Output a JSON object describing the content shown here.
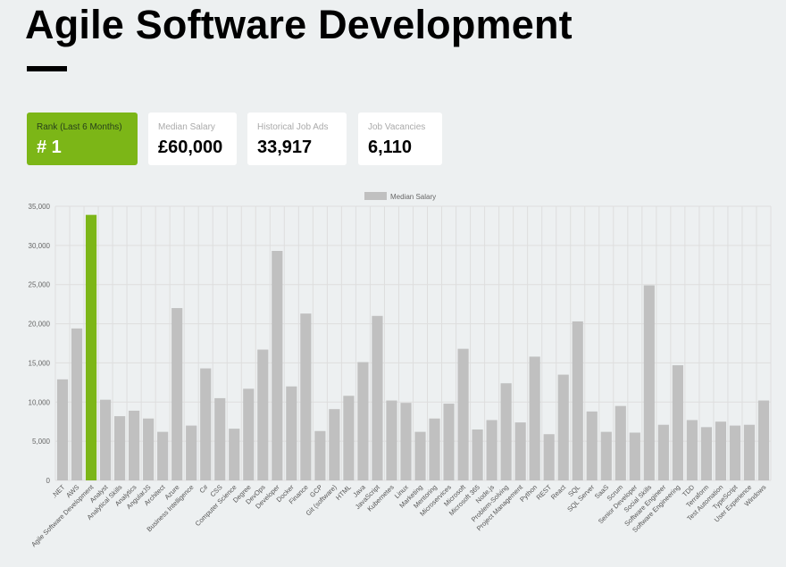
{
  "header": {
    "title": "Agile Software Development"
  },
  "stats": {
    "rank": {
      "label": "Rank (Last 6 Months)",
      "value": "# 1"
    },
    "salary": {
      "label": "Median Salary",
      "value": "£60,000"
    },
    "ads": {
      "label": "Historical Job Ads",
      "value": "33,917"
    },
    "vacancies": {
      "label": "Job Vacancies",
      "value": "6,110"
    }
  },
  "colors": {
    "highlight": "#7cb617",
    "bar": "#c0c0c0",
    "grid": "#dedede"
  },
  "chart_data": {
    "type": "bar",
    "legend": {
      "label": "Median Salary",
      "placement": "top-center"
    },
    "ylim": [
      0,
      35000
    ],
    "yticks": [
      "0",
      "5,000",
      "10,000",
      "15,000",
      "20,000",
      "25,000",
      "30,000",
      "35,000"
    ],
    "ytick_values": [
      0,
      5000,
      10000,
      15000,
      20000,
      25000,
      30000,
      35000
    ],
    "grid": true,
    "highlight_category": "Agile Software Development",
    "categories": [
      ".NET",
      "AWS",
      "Agile Software Development",
      "Analyst",
      "Analytical Skills",
      "Analytics",
      "AngularJS",
      "Architect",
      "Azure",
      "Business Intelligence",
      "C#",
      "CSS",
      "Computer Science",
      "Degree",
      "DevOps",
      "Developer",
      "Docker",
      "Finance",
      "GCP",
      "Git (software)",
      "HTML",
      "Java",
      "JavaScript",
      "Kubernetes",
      "Linux",
      "Marketing",
      "Mentoring",
      "Microservices",
      "Microsoft",
      "Microsoft 365",
      "Node.js",
      "Problem-Solving",
      "Project Management",
      "Python",
      "REST",
      "React",
      "SQL",
      "SQL Server",
      "SaaS",
      "Scrum",
      "Senior Developer",
      "Social Skills",
      "Software Engineer",
      "Software Engineering",
      "TDD",
      "Terraform",
      "Test Automation",
      "TypeScript",
      "User Experience",
      "Windows"
    ],
    "values": [
      12900,
      19400,
      33900,
      10300,
      8200,
      8900,
      7900,
      6200,
      22000,
      7000,
      14300,
      10500,
      6600,
      11700,
      16700,
      29300,
      12000,
      21300,
      6300,
      9100,
      10800,
      15100,
      21000,
      10200,
      9900,
      6200,
      7900,
      9800,
      16800,
      6500,
      7700,
      12400,
      7400,
      15800,
      5900,
      13500,
      20300,
      8800,
      6200,
      9500,
      6100,
      24900,
      7100,
      14700,
      7700,
      6800,
      7500,
      7000,
      7100,
      10200
    ]
  }
}
